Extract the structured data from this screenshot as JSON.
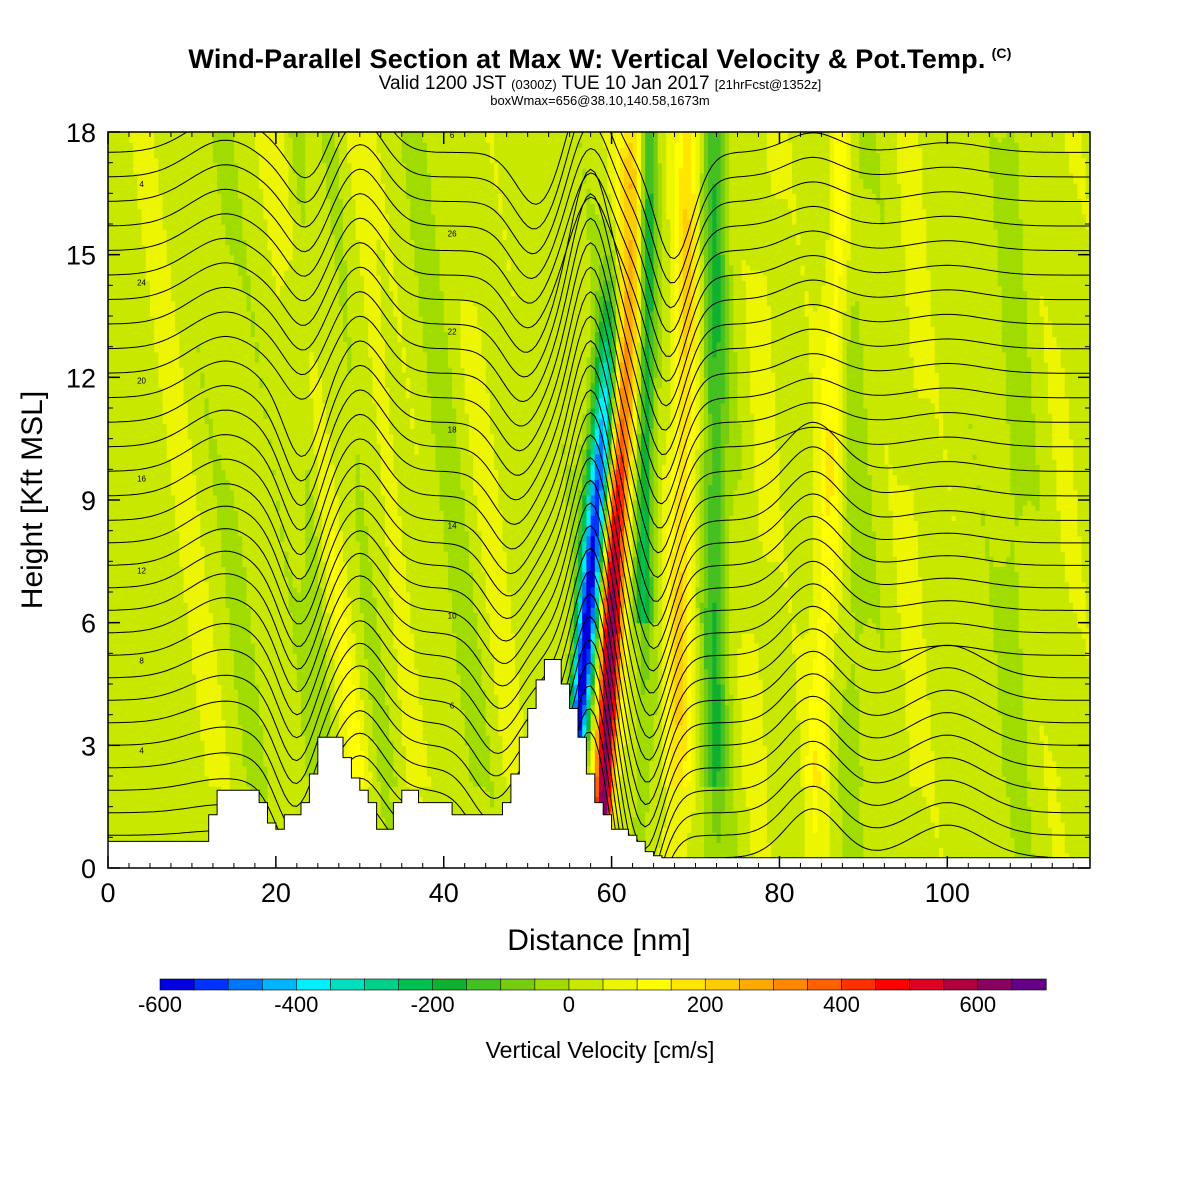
{
  "titles": {
    "main": "Wind-Parallel Section at Max W: Vertical Velocity & Pot.Temp.",
    "main_mark": "(C)",
    "valid_prefix": "Valid 1200 JST",
    "valid_utc": "(0300Z)",
    "valid_date": "TUE 10 Jan 2017",
    "valid_fcst": "[21hrFcst@1352z]",
    "box": "boxWmax=656@38.10,140.58,1673m"
  },
  "chart_data": {
    "type": "heatmap",
    "xlabel": "Distance [nm]",
    "ylabel": "Height [Kft MSL]",
    "xlim": [
      0,
      117
    ],
    "ylim": [
      0,
      18
    ],
    "xticks": [
      0,
      20,
      40,
      60,
      80,
      100
    ],
    "yticks": [
      0,
      3,
      6,
      9,
      12,
      15,
      18
    ],
    "field": "Vertical Velocity [cm/s]",
    "colorbar": {
      "label": "Vertical Velocity [cm/s]",
      "min": -600,
      "max": 700,
      "tick_values": [
        -600,
        -400,
        -200,
        0,
        200,
        400,
        600
      ],
      "tick_labels": [
        "-600",
        "-400",
        "-200",
        "0",
        "200",
        "400",
        "600"
      ],
      "colors": [
        "#0000e0",
        "#0033ff",
        "#0077ff",
        "#00b4ff",
        "#00f0ff",
        "#00e0c0",
        "#00d08a",
        "#00c050",
        "#10b030",
        "#44c020",
        "#78cc10",
        "#a0dc00",
        "#c8e800",
        "#eef500",
        "#ffff00",
        "#ffe600",
        "#ffcc00",
        "#ffaa00",
        "#ff8800",
        "#ff6000",
        "#ff3000",
        "#ff0000",
        "#dd0022",
        "#b00040",
        "#880060",
        "#660088"
      ]
    },
    "updraft_peak_cm_s": 656,
    "downdraft_peak_cm_s": -600,
    "terrain_kft": {
      "x": [
        0,
        11,
        12,
        13,
        17,
        18,
        19,
        20,
        21,
        23,
        24,
        25,
        27,
        28,
        29,
        30,
        31,
        32,
        33,
        34,
        35,
        36,
        37,
        38,
        41,
        42,
        46,
        47,
        48,
        49,
        50,
        51,
        52,
        53,
        54,
        55,
        56,
        57,
        58,
        59,
        60,
        62,
        63,
        64,
        65,
        66,
        117
      ],
      "y": [
        0.65,
        0.65,
        1.3,
        1.9,
        1.9,
        1.6,
        1.1,
        0.95,
        1.3,
        1.6,
        2.3,
        3.2,
        3.2,
        2.7,
        2.2,
        1.9,
        1.6,
        0.95,
        0.95,
        1.6,
        1.9,
        1.9,
        1.6,
        1.6,
        1.3,
        1.3,
        1.3,
        1.6,
        2.3,
        3.2,
        3.9,
        4.6,
        5.1,
        5.1,
        4.5,
        3.9,
        3.2,
        2.3,
        1.6,
        1.3,
        0.95,
        0.8,
        0.65,
        0.4,
        0.3,
        0.25,
        0.25
      ]
    },
    "theta_contour_labels": [
      "4",
      "6",
      "8",
      "10",
      "12",
      "14",
      "16",
      "18",
      "20",
      "22",
      "24",
      "26"
    ]
  }
}
